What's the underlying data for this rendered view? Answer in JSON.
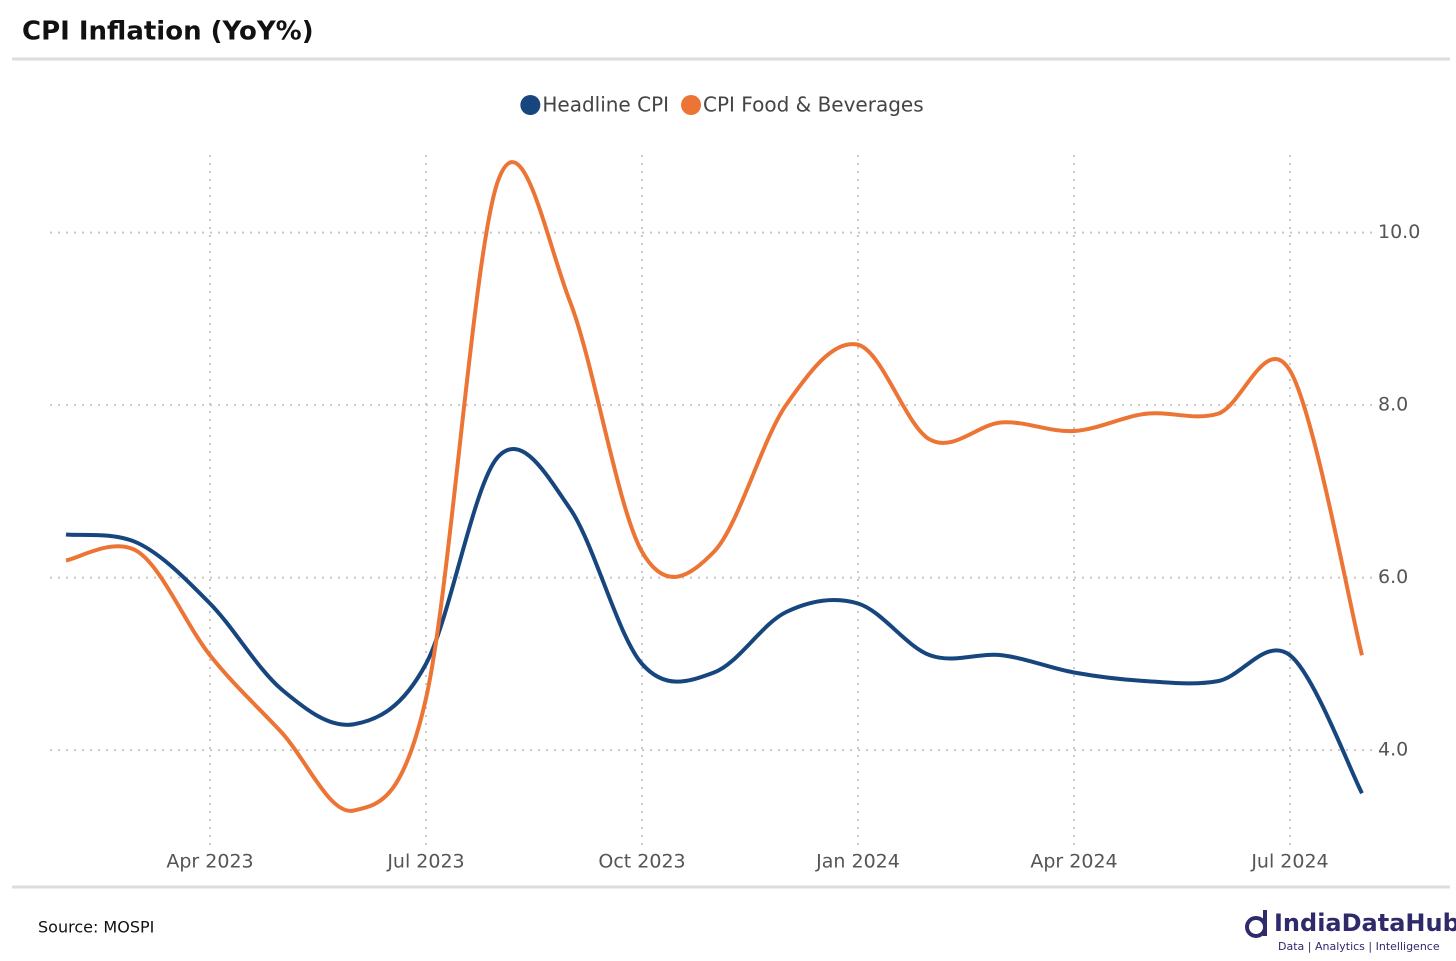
{
  "chart_data": {
    "type": "line",
    "title": "CPI Inflation (YoY%)",
    "x": [
      "2023-02",
      "2023-03",
      "2023-04",
      "2023-05",
      "2023-06",
      "2023-07",
      "2023-08",
      "2023-09",
      "2023-10",
      "2023-11",
      "2023-12",
      "2024-01",
      "2024-02",
      "2024-03",
      "2024-04",
      "2024-05",
      "2024-06",
      "2024-07",
      "2024-08"
    ],
    "series": [
      {
        "name": "Headline CPI",
        "color": "#17467f",
        "values": [
          6.5,
          6.4,
          5.7,
          4.7,
          4.3,
          5.0,
          7.4,
          6.8,
          5.0,
          4.9,
          5.6,
          5.7,
          5.1,
          5.1,
          4.9,
          4.8,
          4.8,
          5.1,
          3.5
        ]
      },
      {
        "name": "CPI Food & Beverages",
        "color": "#ec7535",
        "values": [
          6.2,
          6.3,
          5.1,
          4.2,
          3.3,
          4.6,
          10.6,
          9.2,
          6.3,
          6.3,
          8.0,
          8.7,
          7.6,
          7.8,
          7.7,
          7.9,
          7.9,
          8.4,
          5.1
        ]
      }
    ],
    "xticks": [
      {
        "value": "2023-04",
        "label": "Apr 2023"
      },
      {
        "value": "2023-07",
        "label": "Jul 2023"
      },
      {
        "value": "2023-10",
        "label": "Oct 2023"
      },
      {
        "value": "2024-01",
        "label": "Jan 2024"
      },
      {
        "value": "2024-04",
        "label": "Apr 2024"
      },
      {
        "value": "2024-07",
        "label": "Jul 2024"
      }
    ],
    "ylim": [
      2.9,
      10.9
    ],
    "yticks": [
      {
        "value": 4,
        "label": "4.0"
      },
      {
        "value": 6,
        "label": "6.0"
      },
      {
        "value": 8,
        "label": "8.0"
      },
      {
        "value": 10,
        "label": "10.0"
      }
    ],
    "grid": true,
    "legend": "top",
    "source": "Source: MOSPI",
    "brand": "IndiaDataHub",
    "brand_tagline": "Data | Analytics | Intelligence"
  }
}
